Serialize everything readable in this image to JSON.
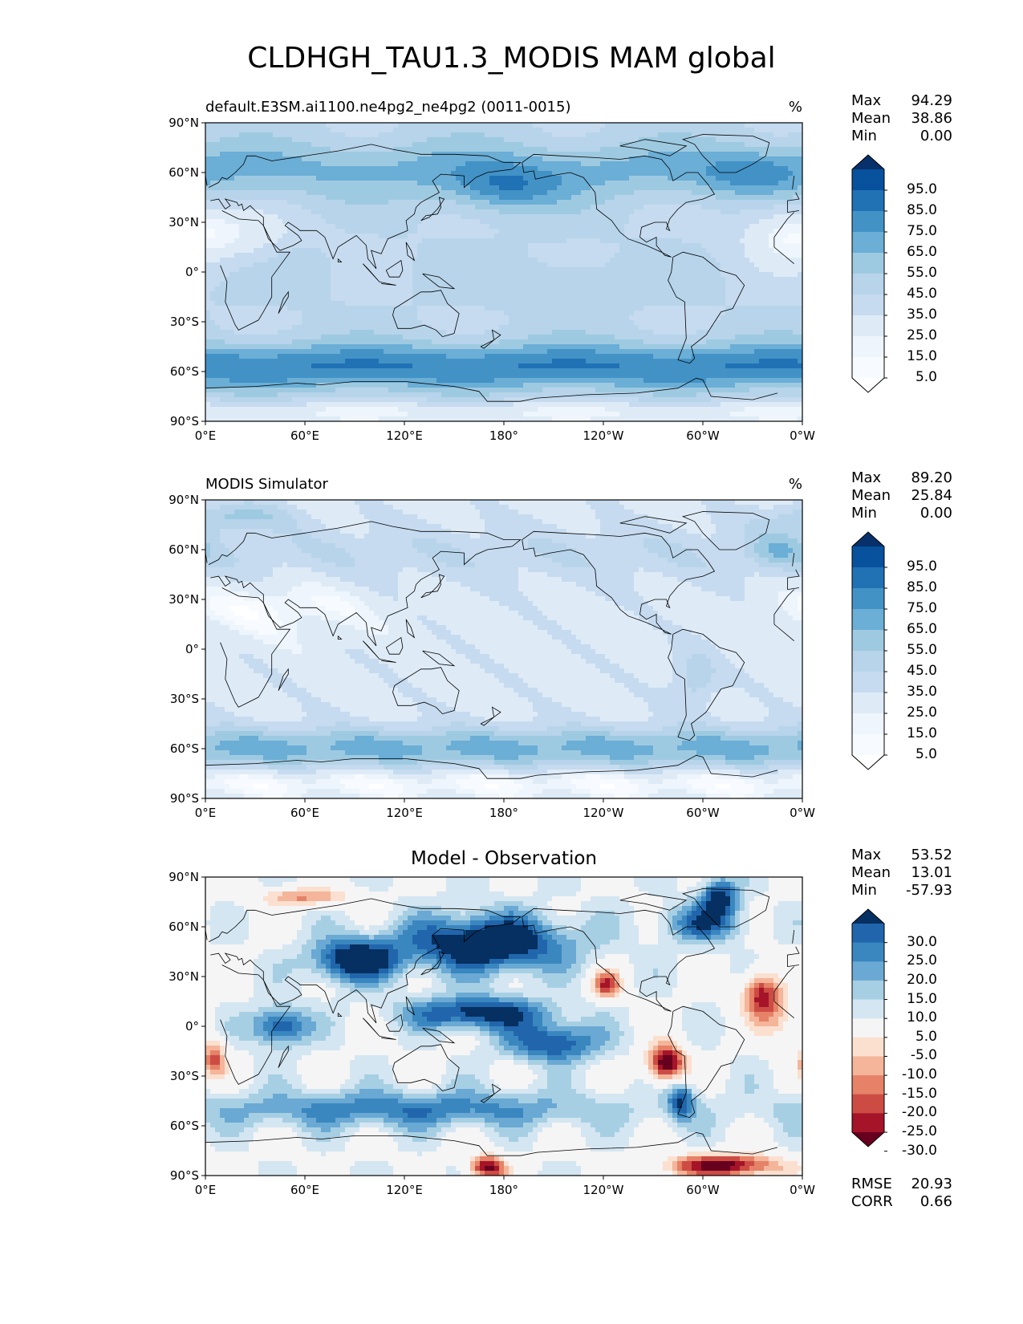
{
  "figure_title": "CLDHGH_TAU1.3_MODIS MAM global",
  "lon_ticks": [
    "0°E",
    "60°E",
    "120°E",
    "180°",
    "120°W",
    "60°W",
    "0°W"
  ],
  "lat_ticks": [
    "90°N",
    "60°N",
    "30°N",
    "0°",
    "30°S",
    "60°S",
    "90°S"
  ],
  "panels": [
    {
      "title_left": "default.E3SM.ai1100.ne4pg2_ne4pg2 (0011-0015)",
      "title_center": "",
      "units": "%",
      "stats": [
        {
          "label": "Max",
          "value": "94.29"
        },
        {
          "label": "Mean",
          "value": "38.86"
        },
        {
          "label": "Min",
          "value": "0.00"
        }
      ],
      "extra_stats": [],
      "colorbar": {
        "labels": [
          "95.0",
          "85.0",
          "75.0",
          "65.0",
          "55.0",
          "45.0",
          "35.0",
          "25.0",
          "15.0",
          "5.0"
        ],
        "colors": [
          "#08306b",
          "#08519c",
          "#2171b5",
          "#4292c6",
          "#6baed6",
          "#9ecae1",
          "#b7d4ea",
          "#c6dbef",
          "#deebf7",
          "#eef5fc",
          "#f7fbff",
          "#ffffff"
        ]
      },
      "field": "model"
    },
    {
      "title_left": "MODIS Simulator",
      "title_center": "",
      "units": "%",
      "stats": [
        {
          "label": "Max",
          "value": "89.20"
        },
        {
          "label": "Mean",
          "value": "25.84"
        },
        {
          "label": "Min",
          "value": "0.00"
        }
      ],
      "extra_stats": [],
      "colorbar": {
        "labels": [
          "95.0",
          "85.0",
          "75.0",
          "65.0",
          "55.0",
          "45.0",
          "35.0",
          "25.0",
          "15.0",
          "5.0"
        ],
        "colors": [
          "#08306b",
          "#08519c",
          "#2171b5",
          "#4292c6",
          "#6baed6",
          "#9ecae1",
          "#b7d4ea",
          "#c6dbef",
          "#deebf7",
          "#eef5fc",
          "#f7fbff",
          "#ffffff"
        ]
      },
      "field": "obs"
    },
    {
      "title_left": "",
      "title_center": "Model - Observation",
      "units": "",
      "stats": [
        {
          "label": "Max",
          "value": "53.52"
        },
        {
          "label": "Mean",
          "value": "13.01"
        },
        {
          "label": "Min",
          "value": "-57.93"
        }
      ],
      "extra_stats": [
        {
          "label": "RMSE",
          "value": "20.93"
        },
        {
          "label": "CORR",
          "value": "0.66"
        }
      ],
      "colorbar": {
        "labels": [
          "30.0",
          "25.0",
          "20.0",
          "15.0",
          "10.0",
          "5.0",
          "-5.0",
          "-10.0",
          "-15.0",
          "-20.0",
          "-25.0",
          "-30.0"
        ],
        "colors": [
          "#053061",
          "#2166ac",
          "#3a87c0",
          "#6aa9d3",
          "#a7cfe4",
          "#d4e6f1",
          "#f5f5f5",
          "#fbe0d0",
          "#f4b59a",
          "#e58267",
          "#cc4c44",
          "#a51429",
          "#67001f"
        ]
      },
      "field": "diff"
    }
  ]
}
